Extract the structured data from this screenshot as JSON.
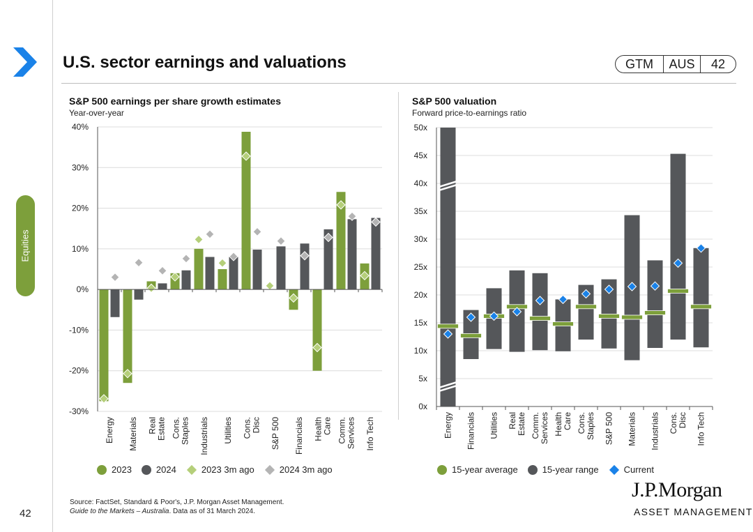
{
  "page_number": "42",
  "side_tab": "Equities",
  "header": {
    "title": "U.S. sector earnings and valuations",
    "badge": [
      "GTM",
      "AUS",
      "42"
    ]
  },
  "colors": {
    "green": "#7d9f3b",
    "dark": "#55575a",
    "light_green": "#b5cf7a",
    "light_gray": "#b4b4b4",
    "blue": "#1a82e8",
    "avg_bar": "#7d9f3b"
  },
  "chart_data": [
    {
      "type": "bar",
      "title": "S&P 500 earnings per share growth estimates",
      "subtitle": "Year-over-year",
      "categories": [
        "Energy",
        "Materials",
        "Real Estate",
        "Cons. Staples",
        "Industrials",
        "Utilities",
        "Cons. Disc",
        "S&P 500",
        "Financials",
        "Health Care",
        "Comm. Services",
        "Info Tech"
      ],
      "category_lines": [
        [
          "Energy"
        ],
        [
          "Materials"
        ],
        [
          "Real",
          "Estate"
        ],
        [
          "Cons.",
          "Staples"
        ],
        [
          "Industrials"
        ],
        [
          "Utilities"
        ],
        [
          "Cons.",
          "Disc"
        ],
        [
          "S&P 500"
        ],
        [
          "Financials"
        ],
        [
          "Health",
          "Care"
        ],
        [
          "Comm.",
          "Services"
        ],
        [
          "Info Tech"
        ]
      ],
      "series": [
        {
          "name": "2023",
          "kind": "bar",
          "color": "#7d9f3b",
          "values": [
            -27.5,
            -23,
            2,
            4,
            10,
            5,
            38.8,
            0,
            -5,
            -20,
            24,
            6.4
          ]
        },
        {
          "name": "2024",
          "kind": "bar",
          "color": "#55575a",
          "values": [
            -6.8,
            -2.5,
            1.5,
            4.7,
            8,
            8,
            9.8,
            10.6,
            11.3,
            14.8,
            17.3,
            17.6
          ]
        },
        {
          "name": "2023 3m ago",
          "kind": "marker",
          "color": "#b5cf7a",
          "values": [
            -26.9,
            -20.7,
            0.3,
            3.1,
            12.3,
            6.5,
            32.8,
            0.9,
            -2.1,
            -14.3,
            20.8,
            3.4
          ]
        },
        {
          "name": "2024 3m ago",
          "kind": "marker",
          "color": "#b4b4b4",
          "values": [
            3,
            6.6,
            4.6,
            7.6,
            13.6,
            8.1,
            14.2,
            11.9,
            8.3,
            12.8,
            18,
            16.6
          ]
        }
      ],
      "ylim": [
        -30,
        40
      ],
      "yticks": [
        -30,
        -20,
        -10,
        0,
        10,
        20,
        30,
        40
      ],
      "ytick_labels": [
        "-30%",
        "-20%",
        "-10%",
        "0%",
        "10%",
        "20%",
        "30%",
        "40%"
      ]
    },
    {
      "type": "range",
      "title": "S&P 500 valuation",
      "subtitle": "Forward price-to-earnings ratio",
      "categories": [
        "Energy",
        "Financials",
        "Utilities",
        "Real Estate",
        "Comm. Services",
        "Health Care",
        "Cons. Staples",
        "S&P 500",
        "Materials",
        "Industrials",
        "Cons. Disc",
        "Info Tech"
      ],
      "category_lines": [
        [
          "Energy"
        ],
        [
          "Financials"
        ],
        [
          "Utilities"
        ],
        [
          "Real",
          "Estate"
        ],
        [
          "Comm.",
          "Services"
        ],
        [
          "Health",
          "Care"
        ],
        [
          "Cons.",
          "Staples"
        ],
        [
          "S&P 500"
        ],
        [
          "Materials"
        ],
        [
          "Industrials"
        ],
        [
          "Cons.",
          "Disc"
        ],
        [
          "Info Tech"
        ]
      ],
      "range_low": [
        0,
        8.5,
        10.3,
        9.8,
        10.1,
        9.9,
        12,
        10.4,
        8.3,
        10.5,
        12,
        10.6
      ],
      "range_high": [
        50,
        17.3,
        21.2,
        24.4,
        23.9,
        19.2,
        21.8,
        22.8,
        34.3,
        26.2,
        45.3,
        28.4
      ],
      "average": [
        14.4,
        12.7,
        16.2,
        17.9,
        15.8,
        14.8,
        17.9,
        16.2,
        16,
        16.8,
        20.7,
        17.9
      ],
      "current": [
        13,
        16,
        16.2,
        17,
        19,
        19.2,
        20.2,
        21,
        21.5,
        21.6,
        25.7,
        28.4
      ],
      "broken_axis_category": "Energy",
      "ylim": [
        0,
        50
      ],
      "yticks": [
        0,
        5,
        10,
        15,
        20,
        25,
        30,
        35,
        40,
        45,
        50
      ],
      "ytick_labels": [
        "0x",
        "5x",
        "10x",
        "15x",
        "20x",
        "25x",
        "30x",
        "35x",
        "40x",
        "45x",
        "50x"
      ]
    }
  ],
  "legend_left": [
    "2023",
    "2024",
    "2023 3m ago",
    "2024 3m ago"
  ],
  "legend_right": [
    "15-year average",
    "15-year range",
    "Current"
  ],
  "source": {
    "line1": "Source: FactSet, Standard & Poor's, J.P. Morgan Asset Management.",
    "guide": "Guide to the Markets – Australia",
    "line2_rest": ". Data as of 31 March 2024."
  },
  "logo": {
    "name": "J.P.Morgan",
    "tagline": "ASSET MANAGEMENT"
  }
}
